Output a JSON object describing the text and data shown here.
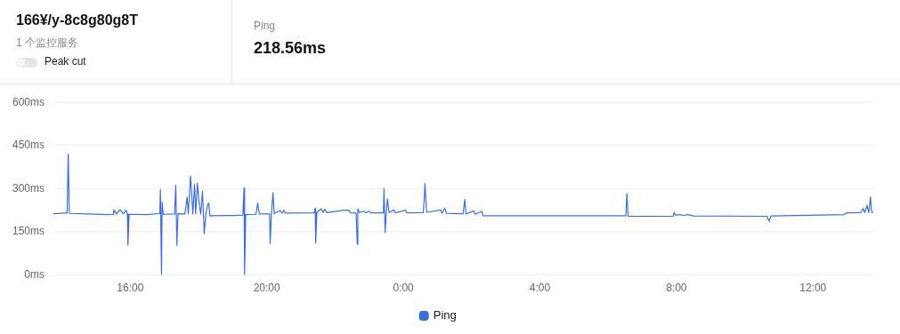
{
  "chart_data": {
    "type": "line",
    "title": "166¥/y-8c8g80g8T",
    "subtitle": "1 个监控服务",
    "annotations": [
      "Peak cut",
      "Ping",
      "218.56ms"
    ],
    "xlim": [
      "--01-01T13:45",
      "--01-02T13:46"
    ],
    "xticks": [
      {
        "value": "--01-01T16:00",
        "label": "16:00"
      },
      {
        "value": "--01-01T20:00",
        "label": "20:00"
      },
      {
        "value": "--01-02T00:00",
        "label": "0:00"
      },
      {
        "value": "--01-02T04:00",
        "label": "4:00"
      },
      {
        "value": "--01-02T08:00",
        "label": "8:00"
      },
      {
        "value": "--01-02T12:00",
        "label": "12:00"
      }
    ],
    "ylim": [
      0,
      600
    ],
    "yticks": [
      {
        "value": 0,
        "label": "0ms"
      },
      {
        "value": 150,
        "label": "150ms"
      },
      {
        "value": 300,
        "label": "300ms"
      },
      {
        "value": 450,
        "label": "450ms"
      },
      {
        "value": 600,
        "label": "600ms"
      }
    ],
    "grid": "y",
    "legend": "bottom",
    "marker": "none",
    "line_style": "solid",
    "series": [
      {
        "name": "Ping",
        "color": "#3b6fd8",
        "x": [
          "--01-01T13:45",
          "--01-01T14:06",
          "--01-01T14:09",
          "--01-01T14:11",
          "--01-01T14:13",
          "--01-01T14:48",
          "--01-01T15:18",
          "--01-01T15:30",
          "--01-01T15:31",
          "--01-01T15:36",
          "--01-01T15:42",
          "--01-01T15:48",
          "--01-01T15:53",
          "--01-01T15:55",
          "--01-01T15:56",
          "--01-01T15:58",
          "--01-01T16:30",
          "--01-01T16:52",
          "--01-01T16:53",
          "--01-01T16:55",
          "--01-01T16:56",
          "--01-01T16:58",
          "--01-01T17:18",
          "--01-01T17:20",
          "--01-01T17:22",
          "--01-01T17:24",
          "--01-01T17:36",
          "--01-01T17:40",
          "--01-01T17:42",
          "--01-01T17:46",
          "--01-01T17:48",
          "--01-01T17:50",
          "--01-01T17:53",
          "--01-01T17:55",
          "--01-01T17:58",
          "--01-01T18:01",
          "--01-01T18:04",
          "--01-01T18:07",
          "--01-01T18:10",
          "--01-01T18:13",
          "--01-01T18:16",
          "--01-01T18:18",
          "--01-01T18:20",
          "--01-01T19:00",
          "--01-01T19:18",
          "--01-01T19:20",
          "--01-01T19:21",
          "--01-01T19:23",
          "--01-01T19:41",
          "--01-01T19:44",
          "--01-01T19:47",
          "--01-01T20:05",
          "--01-01T20:06",
          "--01-01T20:08",
          "--01-01T20:11",
          "--01-01T20:13",
          "--01-01T20:24",
          "--01-01T20:27",
          "--01-01T20:30",
          "--01-01T20:33",
          "--01-01T21:23",
          "--01-01T21:25",
          "--01-01T21:26",
          "--01-01T21:28",
          "--01-01T21:36",
          "--01-01T21:39",
          "--01-01T21:42",
          "--01-01T21:45",
          "--01-01T22:17",
          "--01-01T22:24",
          "--01-01T22:27",
          "--01-01T22:37",
          "--01-01T22:39",
          "--01-01T22:40",
          "--01-01T22:43",
          "--01-01T22:51",
          "--01-01T22:54",
          "--01-01T23:00",
          "--01-01T23:03",
          "--01-01T23:25",
          "--01-01T23:26",
          "--01-01T23:28",
          "--01-01T23:30",
          "--01-01T23:32",
          "--01-01T23:35",
          "--01-01T23:43",
          "--01-01T23:46",
          "--01-02T00:04",
          "--01-02T00:06",
          "--01-02T00:35",
          "--01-02T00:37",
          "--01-02T00:38",
          "--01-02T00:41",
          "--01-02T01:06",
          "--01-02T01:08",
          "--01-02T01:13",
          "--01-02T01:16",
          "--01-02T01:45",
          "--01-02T01:48",
          "--01-02T01:50",
          "--01-02T02:04",
          "--01-02T02:06",
          "--01-02T02:18",
          "--01-02T02:20",
          "--01-02T04:00",
          "--01-02T06:31",
          "--01-02T06:33",
          "--01-02T06:35",
          "--01-02T07:54",
          "--01-02T07:56",
          "--01-02T07:58",
          "--01-02T08:06",
          "--01-02T08:12",
          "--01-02T08:21",
          "--01-02T08:30",
          "--01-02T10:39",
          "--01-02T10:43",
          "--01-02T10:46",
          "--01-02T11:08",
          "--01-02T12:54",
          "--01-02T13:00",
          "--01-02T13:24",
          "--01-02T13:28",
          "--01-02T13:31",
          "--01-02T13:35",
          "--01-02T13:38",
          "--01-02T13:41",
          "--01-02T13:43",
          "--01-02T13:46"
        ],
        "values": [
          213,
          215,
          215,
          420,
          214,
          212,
          210,
          211,
          226,
          212,
          227,
          213,
          225,
          212,
          104,
          211,
          210,
          214,
          297,
          0,
          254,
          211,
          212,
          312,
          102,
          213,
          212,
          271,
          213,
          344,
          283,
          212,
          315,
          213,
          319,
          251,
          212,
          291,
          144,
          212,
          245,
          250,
          206,
          207,
          208,
          302,
          0,
          210,
          211,
          250,
          212,
          212,
          109,
          212,
          286,
          213,
          224,
          214,
          225,
          215,
          216,
          231,
          112,
          217,
          230,
          217,
          229,
          217,
          225,
          225,
          216,
          215,
          107,
          230,
          217,
          222,
          216,
          222,
          216,
          216,
          300,
          148,
          217,
          265,
          217,
          226,
          216,
          225,
          216,
          217,
          271,
          318,
          218,
          226,
          215,
          232,
          214,
          213,
          262,
          212,
          223,
          211,
          221,
          206,
          206,
          206,
          283,
          204,
          204,
          218,
          208,
          210,
          207,
          210,
          205,
          204,
          187,
          205,
          206,
          210,
          216,
          217,
          231,
          217,
          242,
          217,
          271,
          219,
          216
        ]
      }
    ]
  }
}
